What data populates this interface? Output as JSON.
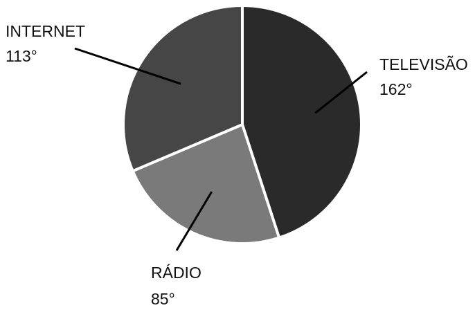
{
  "chart_data": {
    "type": "pie",
    "unit": "°",
    "slices": [
      {
        "label": "TELEVISÃO",
        "value": 162,
        "value_text": "162°",
        "color": "#2a2a2a"
      },
      {
        "label": "RÁDIO",
        "value": 85,
        "value_text": "85°",
        "color": "#7a7a7a"
      },
      {
        "label": "INTERNET",
        "value": 113,
        "value_text": "113°",
        "color": "#464646"
      }
    ],
    "slice_border_color": "#ffffff",
    "label_line_color": "#000000"
  }
}
